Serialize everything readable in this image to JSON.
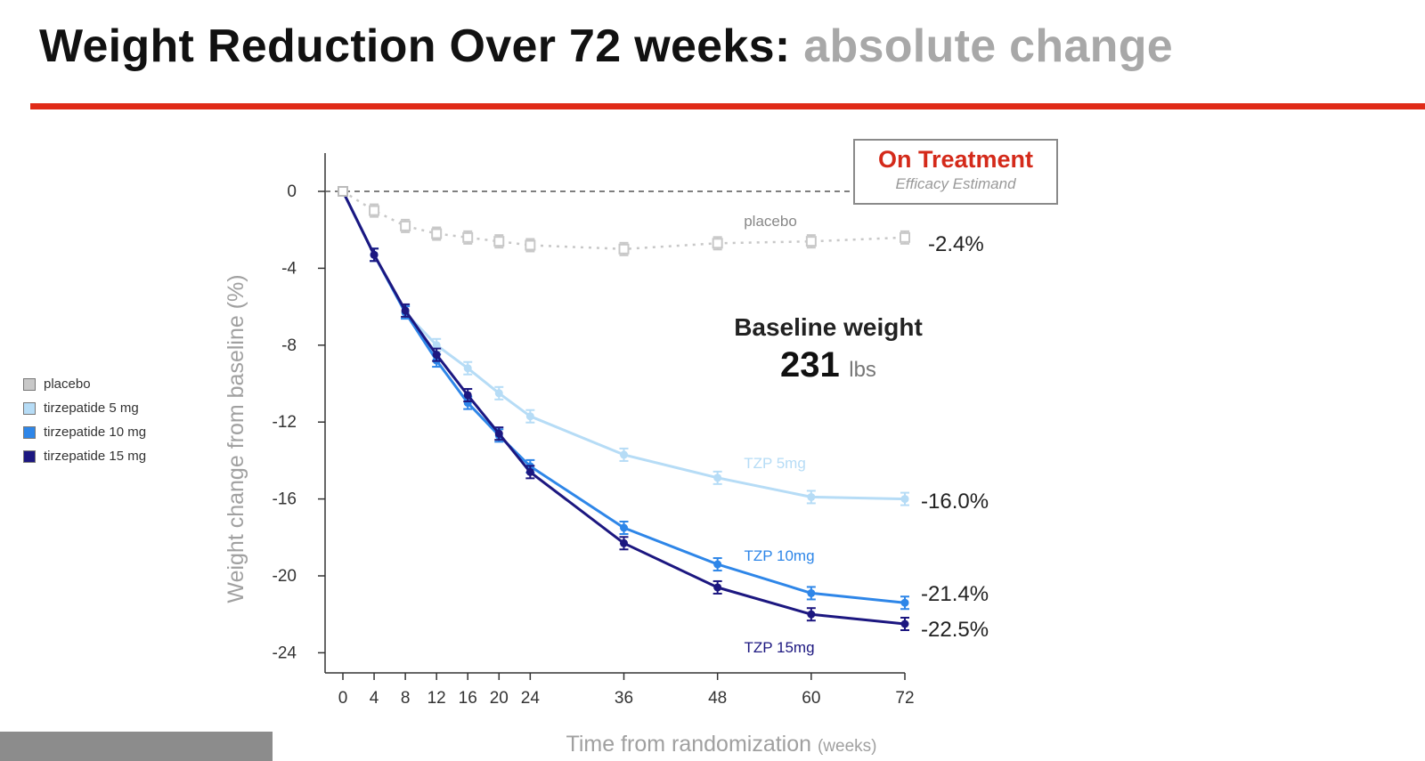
{
  "slide": {
    "title_main": "Weight Reduction Over 72 weeks:",
    "title_accent": "absolute change",
    "accent_color": "#e02a17"
  },
  "badge": {
    "title": "On Treatment",
    "subtitle": "Efficacy Estimand",
    "title_color": "#d42a1a"
  },
  "baseline": {
    "label": "Baseline weight",
    "value": "231",
    "unit": "lbs"
  },
  "legend": [
    {
      "label": "placebo",
      "color": "#c8c8c8"
    },
    {
      "label": "tirzepatide 5 mg",
      "color": "#b6dcf6"
    },
    {
      "label": "tirzepatide 10 mg",
      "color": "#2e86e8"
    },
    {
      "label": "tirzepatide 15 mg",
      "color": "#1c1780"
    }
  ],
  "chart_data": {
    "type": "line",
    "title": "",
    "xlabel": "Time from randomization",
    "xlabel_unit": "(weeks)",
    "ylabel": "Weight change from baseline (%)",
    "x": [
      0,
      4,
      8,
      12,
      16,
      20,
      24,
      36,
      48,
      60,
      72
    ],
    "xticks": [
      "0",
      "4",
      "8",
      "12",
      "16",
      "20",
      "24",
      "36",
      "48",
      "60",
      "72"
    ],
    "yticks": [
      "0",
      "-4",
      "-8",
      "-12",
      "-16",
      "-20",
      "-24"
    ],
    "xlim": [
      0,
      72
    ],
    "ylim": [
      -24.5,
      1.5
    ],
    "reference_line_y": 0,
    "series": [
      {
        "name": "placebo",
        "series_label": "placebo",
        "end_label": "-2.4%",
        "color": "#c8c8c8",
        "style": "dotted",
        "marker": "square",
        "values": [
          0,
          -1.0,
          -1.8,
          -2.2,
          -2.4,
          -2.6,
          -2.8,
          -3.0,
          -2.7,
          -2.6,
          -2.4
        ]
      },
      {
        "name": "tirzepatide 5 mg",
        "series_label": "TZP 5mg",
        "end_label": "-16.0%",
        "color": "#b6dcf6",
        "style": "solid",
        "marker": "circle",
        "values": [
          0,
          -3.3,
          -6.3,
          -8.0,
          -9.2,
          -10.5,
          -11.7,
          -13.7,
          -14.9,
          -15.9,
          -16.0
        ]
      },
      {
        "name": "tirzepatide 10 mg",
        "series_label": "TZP 10mg",
        "end_label": "-21.4%",
        "color": "#2e86e8",
        "style": "solid",
        "marker": "circle",
        "values": [
          0,
          -3.3,
          -6.3,
          -8.8,
          -11.0,
          -12.7,
          -14.3,
          -17.5,
          -19.4,
          -20.9,
          -21.4
        ]
      },
      {
        "name": "tirzepatide 15 mg",
        "series_label": "TZP 15mg",
        "end_label": "-22.5%",
        "color": "#1c1780",
        "style": "solid",
        "marker": "circle",
        "values": [
          0,
          -3.3,
          -6.2,
          -8.5,
          -10.6,
          -12.6,
          -14.6,
          -18.3,
          -20.6,
          -22.0,
          -22.5
        ]
      }
    ]
  }
}
